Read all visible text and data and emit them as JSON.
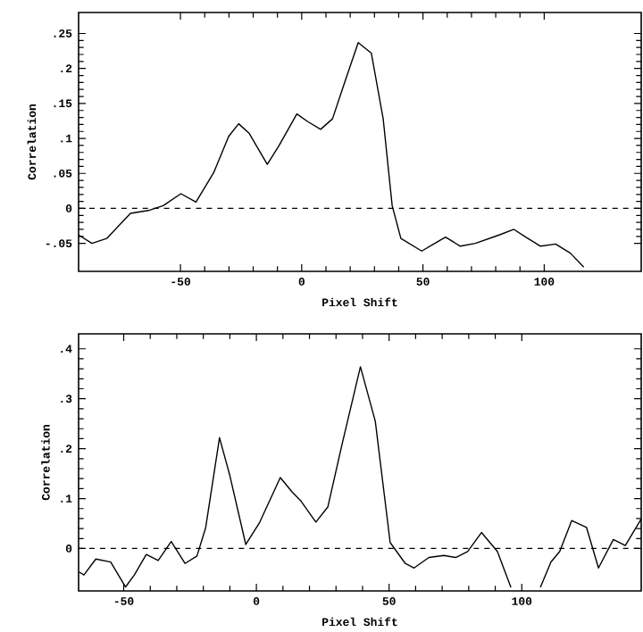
{
  "chart_data": [
    {
      "type": "line",
      "xlabel": "Pixel Shift",
      "ylabel": "Correlation",
      "xlim": [
        -92,
        140
      ],
      "ylim": [
        -0.09,
        0.28
      ],
      "xticks": [
        -50,
        0,
        50,
        100
      ],
      "yticks": [
        {
          "value": -0.05,
          "label": "-.05"
        },
        {
          "value": 0,
          "label": "0"
        },
        {
          "value": 0.05,
          "label": ".05"
        },
        {
          "value": 0.1,
          "label": ".1"
        },
        {
          "value": 0.15,
          "label": ".15"
        },
        {
          "value": 0.2,
          "label": ".2"
        },
        {
          "value": 0.25,
          "label": ".25"
        }
      ],
      "ref_lines": [
        {
          "axis": "y",
          "value": 0,
          "line_style": "dashed"
        }
      ],
      "series": [
        {
          "color": "#000000",
          "x": [
            -92,
            -86.5,
            -80.4,
            -70.6,
            -63.2,
            -57.1,
            -49.8,
            -43.6,
            -36.3,
            -30.1,
            -26,
            -21.6,
            -14.2,
            -9.3,
            -2,
            2.5,
            7.8,
            12.7,
            17.6,
            23.3,
            28.7,
            33.6,
            37.3,
            40.9,
            49.5,
            54.4,
            59.3,
            65.4,
            71.6,
            81.4,
            87.5,
            92.4,
            98.5,
            104.7,
            110.8,
            116.3
          ],
          "values": [
            -0.038,
            -0.05,
            -0.043,
            -0.007,
            -0.003,
            0.004,
            0.021,
            0.009,
            0.051,
            0.103,
            0.121,
            0.107,
            0.063,
            0.09,
            0.135,
            0.124,
            0.113,
            0.128,
            0.179,
            0.237,
            0.222,
            0.128,
            0.004,
            -0.043,
            -0.061,
            -0.051,
            -0.041,
            -0.054,
            -0.05,
            -0.038,
            -0.03,
            -0.041,
            -0.054,
            -0.051,
            -0.064,
            -0.084
          ]
        }
      ]
    },
    {
      "type": "line",
      "xlabel": "Pixel Shift",
      "ylabel": "Correlation",
      "xlim": [
        -67,
        145
      ],
      "ylim": [
        -0.085,
        0.43
      ],
      "xticks": [
        -50,
        0,
        50,
        100
      ],
      "yticks": [
        {
          "value": 0,
          "label": "0"
        },
        {
          "value": 0.1,
          "label": ".1"
        },
        {
          "value": 0.2,
          "label": ".2"
        },
        {
          "value": 0.3,
          "label": ".3"
        },
        {
          "value": 0.4,
          "label": ".4"
        }
      ],
      "ref_lines": [
        {
          "axis": "y",
          "value": 0,
          "line_style": "dashed"
        }
      ],
      "series": [
        {
          "color": "#000000",
          "x": [
            -66.8,
            -65,
            -60.5,
            -54.9,
            -49.3,
            -46,
            -41.5,
            -37,
            -32.1,
            -26.9,
            -22.4,
            -19.1,
            -13.9,
            -10.1,
            -4,
            1.1,
            9,
            13.5,
            16.8,
            22.4,
            26.9,
            32.5,
            39.2,
            44.8,
            50.4,
            56.1,
            59.4,
            65,
            70.6,
            75.1,
            79.6,
            84.8,
            90.8,
            95.9,
            101,
            107,
            111,
            114.3,
            118.8,
            124.4,
            128.9,
            134.5,
            139,
            145
          ],
          "values": [
            -0.047,
            -0.053,
            -0.021,
            -0.027,
            -0.077,
            -0.053,
            -0.012,
            -0.024,
            0.014,
            -0.03,
            -0.015,
            0.042,
            0.222,
            0.148,
            0.008,
            0.051,
            0.142,
            0.113,
            0.095,
            0.053,
            0.083,
            0.214,
            0.364,
            0.255,
            0.012,
            -0.03,
            -0.039,
            -0.018,
            -0.014,
            -0.018,
            -0.006,
            0.032,
            -0.006,
            -0.078,
            null,
            -0.078,
            -0.027,
            -0.006,
            0.056,
            0.042,
            -0.039,
            0.018,
            0.006,
            0.059
          ]
        }
      ]
    }
  ]
}
